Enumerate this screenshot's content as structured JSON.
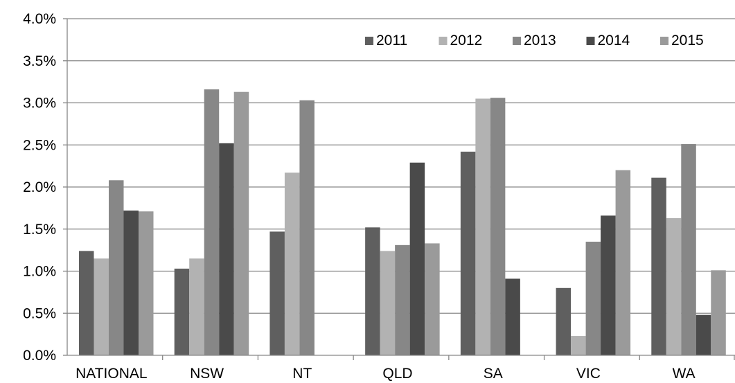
{
  "colors": {
    "2011": "#5f5f5f",
    "2012": "#b2b2b2",
    "2013": "#878787",
    "2014": "#4a4a4a",
    "2015": "#9a9a9a",
    "axis": "#868686"
  },
  "chart_data": {
    "type": "bar",
    "title": "",
    "xlabel": "",
    "ylabel": "",
    "ylim": [
      0,
      0.04
    ],
    "yticks": [
      "0.0%",
      "0.5%",
      "1.0%",
      "1.5%",
      "2.0%",
      "2.5%",
      "3.0%",
      "3.5%",
      "4.0%"
    ],
    "grid": true,
    "legend": "top-right",
    "categories": [
      "NATIONAL",
      "NSW",
      "NT",
      "QLD",
      "SA",
      "VIC",
      "WA"
    ],
    "series": [
      {
        "name": "2011",
        "values": [
          0.0124,
          0.0103,
          0.0147,
          0.0152,
          0.0242,
          0.008,
          0.0211
        ]
      },
      {
        "name": "2012",
        "values": [
          0.0115,
          0.0115,
          0.0217,
          0.0124,
          0.0305,
          0.0023,
          0.0163
        ]
      },
      {
        "name": "2013",
        "values": [
          0.0208,
          0.0316,
          0.0303,
          0.0131,
          0.0306,
          0.0135,
          0.0251
        ]
      },
      {
        "name": "2014",
        "values": [
          0.0172,
          0.0252,
          null,
          0.0229,
          0.0091,
          0.0166,
          0.0048
        ]
      },
      {
        "name": "2015",
        "values": [
          0.0171,
          0.0313,
          null,
          0.0133,
          null,
          0.022,
          0.0101
        ]
      }
    ]
  }
}
